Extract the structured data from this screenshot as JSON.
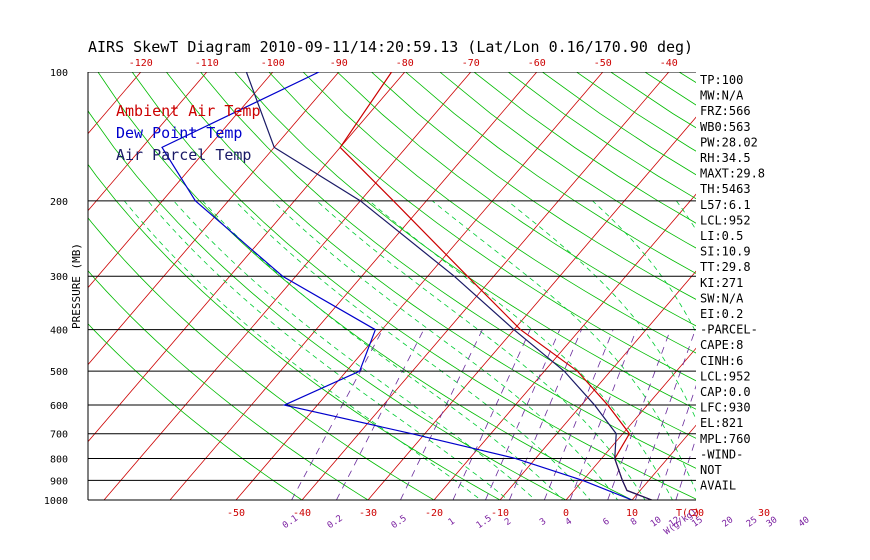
{
  "title": "AIRS SkewT Diagram 2010-09-11/14:20:59.13 (Lat/Lon 0.16/170.90 deg)",
  "colors": {
    "ambient": "#cc0000",
    "dewpoint": "#0000cc",
    "parcel": "#1a1a66",
    "isotherm": "#cc0000",
    "dry_adiabat": "#00bb00",
    "moist_adiabat": "#00cc33",
    "mixing": "#6a2c9c",
    "isobar": "#000000"
  },
  "legend": [
    {
      "label": "Ambient Air Temp",
      "color": "#cc0000"
    },
    {
      "label": "Dew Point Temp",
      "color": "#0000cc"
    },
    {
      "label": "Air Parcel Temp",
      "color": "#1a1a66"
    }
  ],
  "chart_data": {
    "type": "line",
    "title": "AIRS SkewT Diagram 2010-09-11/14:20:59.13 (Lat/Lon 0.16/170.90 deg)",
    "ylabel": "PRESSURE (MB)",
    "pressure_range": [
      1000,
      100
    ],
    "pressure_ticks": [
      "100",
      "200",
      "300",
      "400",
      "500",
      "600",
      "700",
      "800",
      "900",
      "1000"
    ],
    "pressure_levels": [
      100,
      200,
      300,
      400,
      500,
      600,
      700,
      800,
      900,
      1000
    ],
    "top_temp_ticks": [
      "-120",
      "-110",
      "-100",
      "-90",
      "-80",
      "-70",
      "-60",
      "-50",
      "-40"
    ],
    "bottom_temp_ticks": [
      "-50",
      "-40",
      "-30",
      "-20",
      "-10",
      "0",
      "10",
      "20",
      "30"
    ],
    "bottom_temp_label": "T(C)",
    "mixing_ratio_ticks": [
      "0.1",
      "0.2",
      "0.5",
      "1",
      "1.5",
      "2",
      "3",
      "4",
      "6",
      "8",
      "10",
      "12",
      "15",
      "20",
      "25",
      "30",
      "40"
    ],
    "mixing_ratio_label": "W(g/kg)",
    "series": [
      {
        "name": "Ambient Air Temp",
        "points": [
          [
            100,
            -82
          ],
          [
            150,
            -80
          ],
          [
            200,
            -65
          ],
          [
            300,
            -44
          ],
          [
            400,
            -29
          ],
          [
            500,
            -15
          ],
          [
            600,
            -6
          ],
          [
            700,
            1
          ],
          [
            800,
            2
          ],
          [
            900,
            6
          ],
          [
            950,
            8
          ],
          [
            1000,
            13
          ]
        ]
      },
      {
        "name": "Dew Point Temp",
        "points": [
          [
            100,
            -93
          ],
          [
            150,
            -107
          ],
          [
            200,
            -95
          ],
          [
            300,
            -72
          ],
          [
            400,
            -51
          ],
          [
            500,
            -48
          ],
          [
            600,
            -55
          ],
          [
            700,
            -32
          ],
          [
            800,
            -13
          ],
          [
            900,
            0
          ],
          [
            1000,
            10
          ]
        ]
      },
      {
        "name": "Air Parcel Temp",
        "points": [
          [
            100,
            -104
          ],
          [
            150,
            -90
          ],
          [
            200,
            -70
          ],
          [
            300,
            -46
          ],
          [
            400,
            -30
          ],
          [
            500,
            -17
          ],
          [
            600,
            -8
          ],
          [
            700,
            -1
          ],
          [
            800,
            2
          ],
          [
            900,
            6
          ],
          [
            950,
            8
          ],
          [
            1000,
            13
          ]
        ]
      }
    ]
  },
  "stats": [
    "TP:100",
    "MW:N/A",
    "FRZ:566",
    "WB0:563",
    "PW:28.02",
    "RH:34.5",
    "MAXT:29.8",
    "TH:5463",
    "L57:6.1",
    "LCL:952",
    "LI:0.5",
    "SI:10.9",
    "TT:29.8",
    "KI:271",
    "SW:N/A",
    "EI:0.2",
    "-PARCEL-",
    "CAPE:8",
    "CINH:6",
    "LCL:952",
    "CAP:0.0",
    "LFC:930",
    "EL:821",
    "MPL:760",
    "-WIND-",
    "NOT",
    "AVAIL"
  ]
}
